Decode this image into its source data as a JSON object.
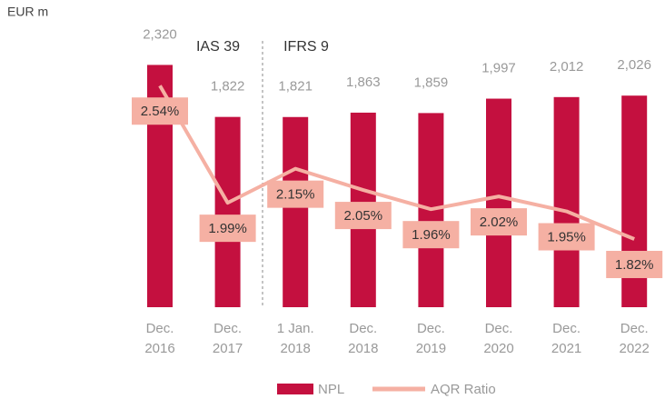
{
  "chart_data": {
    "type": "bar",
    "unit_label": "EUR m",
    "annotations": [
      "IAS 39",
      "IFRS 9"
    ],
    "categories": [
      [
        "Dec.",
        "2016"
      ],
      [
        "Dec.",
        "2017"
      ],
      [
        "1 Jan.",
        "2018"
      ],
      [
        "Dec.",
        "2018"
      ],
      [
        "Dec.",
        "2019"
      ],
      [
        "Dec.",
        "2020"
      ],
      [
        "Dec.",
        "2021"
      ],
      [
        "Dec.",
        "2022"
      ]
    ],
    "series": [
      {
        "name": "NPL",
        "type": "bar",
        "color": "#c4103f",
        "values": [
          2320,
          1822,
          1821,
          1863,
          1859,
          1997,
          2012,
          2026
        ],
        "value_labels": [
          "2,320",
          "1,822",
          "1,821",
          "1,863",
          "1,859",
          "1,997",
          "2,012",
          "2,026"
        ]
      },
      {
        "name": "AQR Ratio",
        "type": "line",
        "axis": "y2",
        "color": "#f5b0a3",
        "values": [
          2.54,
          1.99,
          2.15,
          2.05,
          1.96,
          2.02,
          1.95,
          1.82
        ],
        "value_labels": [
          "2.54%",
          "1.99%",
          "2.15%",
          "2.05%",
          "1.96%",
          "2.02%",
          "1.95%",
          "1.82%"
        ]
      }
    ],
    "ylim": [
      0,
      2550
    ],
    "y2lim": [
      1.5,
      2.75
    ]
  }
}
